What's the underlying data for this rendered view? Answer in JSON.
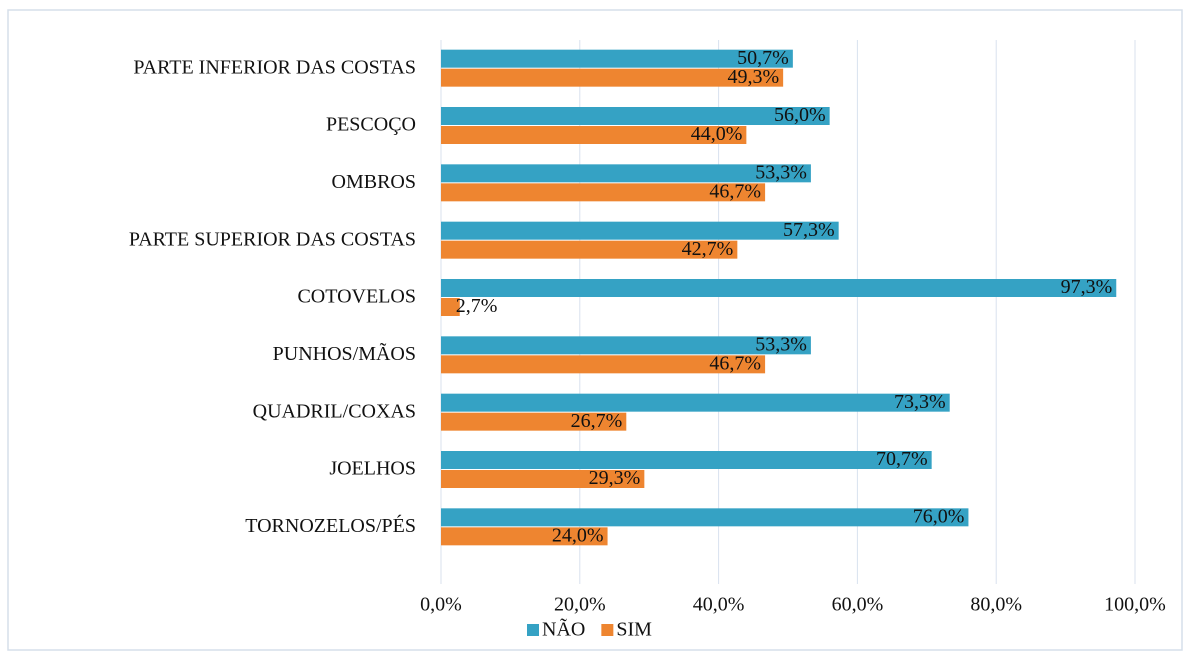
{
  "chart_data": {
    "type": "hbar",
    "categories": [
      "PARTE INFERIOR DAS COSTAS",
      "PESCOÇO",
      "OMBROS",
      "PARTE SUPERIOR DAS COSTAS",
      "COTOVELOS",
      "PUNHOS/MÃOS",
      "QUADRIL/COXAS",
      "JOELHOS",
      "TORNOZELOS/PÉS"
    ],
    "series": [
      {
        "name": "NÃO",
        "color": "#35a2c4",
        "values": [
          50.7,
          56.0,
          53.3,
          57.3,
          97.3,
          53.3,
          73.3,
          70.7,
          76.0
        ],
        "value_labels": [
          "50,7%",
          "56,0%",
          "53,3%",
          "57,3%",
          "97,3%",
          "53,3%",
          "73,3%",
          "70,7%",
          "76,0%"
        ]
      },
      {
        "name": "SIM",
        "color": "#ee8530",
        "values": [
          49.3,
          44.0,
          46.7,
          42.7,
          2.7,
          46.7,
          26.7,
          29.3,
          24.0
        ],
        "value_labels": [
          "49,3%",
          "44,0%",
          "46,7%",
          "42,7%",
          "2,7%",
          "46,7%",
          "26,7%",
          "29,3%",
          "24,0%"
        ]
      }
    ],
    "xlim": [
      0,
      100
    ],
    "xticks": [
      {
        "value": 0,
        "label": "0,0%"
      },
      {
        "value": 20,
        "label": "20,0%"
      },
      {
        "value": 40,
        "label": "40,0%"
      },
      {
        "value": 60,
        "label": "60,0%"
      },
      {
        "value": 80,
        "label": "80,0%"
      },
      {
        "value": 100,
        "label": "100,0%"
      }
    ],
    "grid": true,
    "legend": "bottom"
  }
}
